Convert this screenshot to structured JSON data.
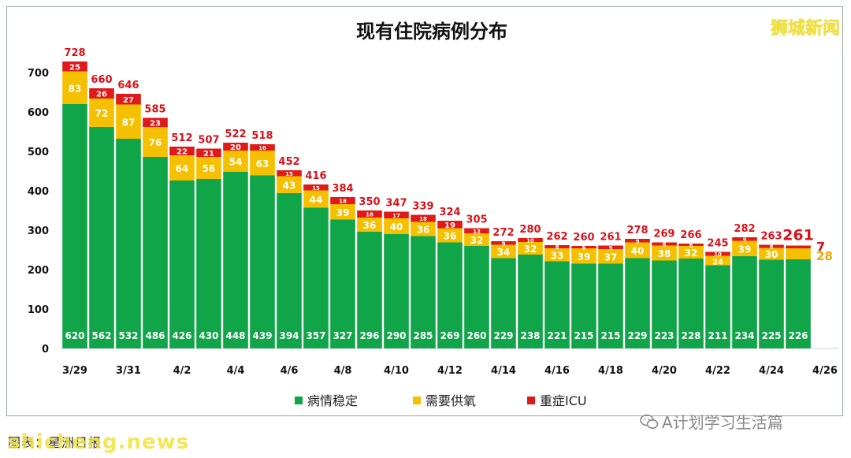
{
  "brand": "狮城新闻",
  "footer": {
    "source": "图表：星洲日报",
    "watermark_site": "shicheng.news",
    "watermark_account": "A计划学习生活篇"
  },
  "colors": {
    "stable": "#11a54a",
    "oxygen": "#f5c000",
    "icu": "#e0191a",
    "total_label": "#d8121b",
    "oxygen_label": "#f0a800"
  },
  "chart_data": {
    "type": "bar",
    "stacked": true,
    "title": "现有住院病例分布",
    "ylim": [
      0,
      750
    ],
    "yticks": [
      0,
      100,
      200,
      300,
      400,
      500,
      600,
      700
    ],
    "grid": false,
    "legend_position": "bottom",
    "categories": [
      "3/29",
      "3/30",
      "3/31",
      "4/1",
      "4/2",
      "4/3",
      "4/4",
      "4/5",
      "4/6",
      "4/7",
      "4/8",
      "4/9",
      "4/10",
      "4/11",
      "4/12",
      "4/13",
      "4/14",
      "4/15",
      "4/16",
      "4/17",
      "4/18",
      "4/19",
      "4/20",
      "4/21",
      "4/22",
      "4/23",
      "4/24",
      "4/25",
      "4/26"
    ],
    "x_tick_labels": [
      "3/29",
      "",
      "3/31",
      "",
      "4/2",
      "",
      "4/4",
      "",
      "4/6",
      "",
      "4/8",
      "",
      "4/10",
      "",
      "4/12",
      "",
      "4/14",
      "",
      "4/16",
      "",
      "4/18",
      "",
      "4/20",
      "",
      "4/22",
      "",
      "4/24",
      "",
      "4/26"
    ],
    "series": [
      {
        "name": "病情稳定",
        "color": "#11a54a",
        "values": [
          620,
          562,
          532,
          486,
          426,
          430,
          448,
          439,
          394,
          357,
          327,
          296,
          290,
          285,
          269,
          260,
          229,
          238,
          221,
          215,
          215,
          229,
          223,
          228,
          211,
          234,
          225,
          226,
          null
        ]
      },
      {
        "name": "需要供氧",
        "color": "#f5c000",
        "values": [
          83,
          72,
          87,
          76,
          64,
          56,
          54,
          63,
          43,
          44,
          39,
          36,
          40,
          36,
          36,
          32,
          34,
          32,
          33,
          39,
          37,
          40,
          38,
          32,
          24,
          39,
          30,
          28,
          null
        ]
      },
      {
        "name": "重症ICU",
        "color": "#e0191a",
        "values": [
          25,
          26,
          27,
          23,
          22,
          21,
          20,
          16,
          15,
          15,
          18,
          18,
          17,
          18,
          19,
          13,
          9,
          10,
          8,
          6,
          9,
          9,
          8,
          6,
          10,
          9,
          8,
          7,
          null
        ]
      }
    ],
    "totals": [
      728,
      660,
      646,
      585,
      512,
      507,
      522,
      518,
      452,
      416,
      384,
      350,
      347,
      339,
      324,
      305,
      272,
      280,
      262,
      260,
      261,
      278,
      269,
      266,
      245,
      282,
      263,
      261,
      null
    ],
    "annotations": [
      {
        "text": "7",
        "series": "重症ICU",
        "category": "4/25"
      },
      {
        "text": "28",
        "series": "需要供氧",
        "category": "4/25"
      }
    ]
  }
}
